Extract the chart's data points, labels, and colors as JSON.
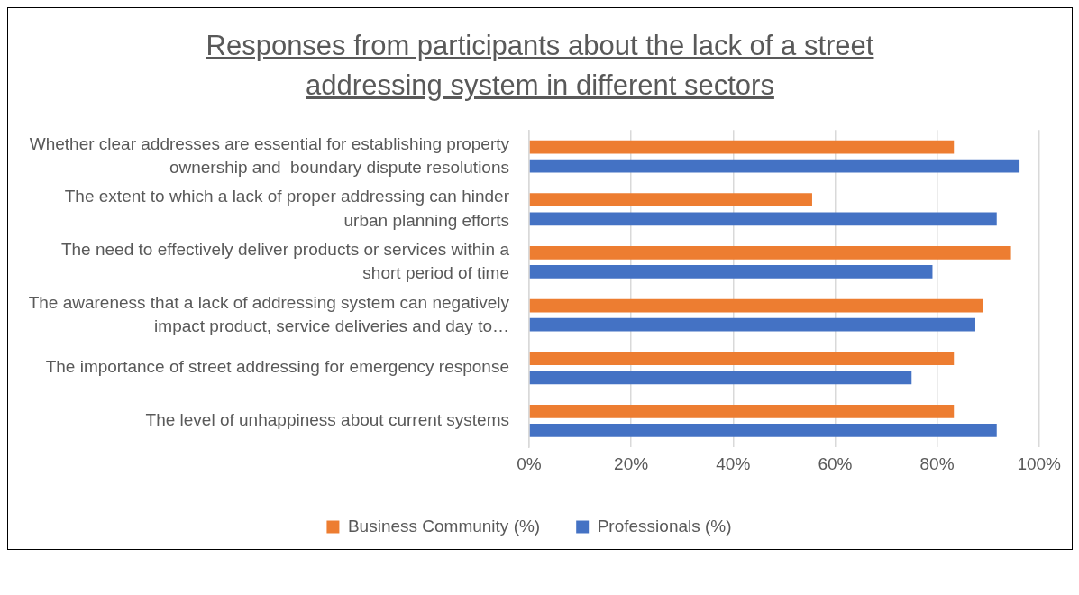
{
  "chart_data": {
    "type": "bar",
    "orientation": "horizontal",
    "title": "Responses from participants about the lack of a street addressing system in different sectors",
    "categories": [
      "Whether clear addresses are essential for establishing property ownership and  boundary dispute resolutions",
      "The extent to which a lack of proper addressing can hinder urban planning efforts",
      "The need to effectively deliver products or services within a short period of time",
      "The awareness that a lack of addressing system can negatively impact product, service deliveries and day to…",
      "The importance of street addressing for emergency response",
      "The level of unhappiness about current systems"
    ],
    "series": [
      {
        "name": "Business Community (%)",
        "color": "#ed7d31",
        "values": [
          83.3,
          55.5,
          94.5,
          89,
          83.3,
          83.3
        ]
      },
      {
        "name": "Professionals (%)",
        "color": "#4472c4",
        "values": [
          96,
          91.7,
          79.1,
          87.5,
          75,
          91.7
        ]
      }
    ],
    "xlim": [
      0,
      100
    ],
    "xticks": [
      {
        "value": 0,
        "label": "0%"
      },
      {
        "value": 20,
        "label": "20%"
      },
      {
        "value": 40,
        "label": "40%"
      },
      {
        "value": 60,
        "label": "60%"
      },
      {
        "value": 80,
        "label": "80%"
      },
      {
        "value": 100,
        "label": "100%"
      }
    ],
    "grid": "x",
    "legend": "bottom"
  }
}
